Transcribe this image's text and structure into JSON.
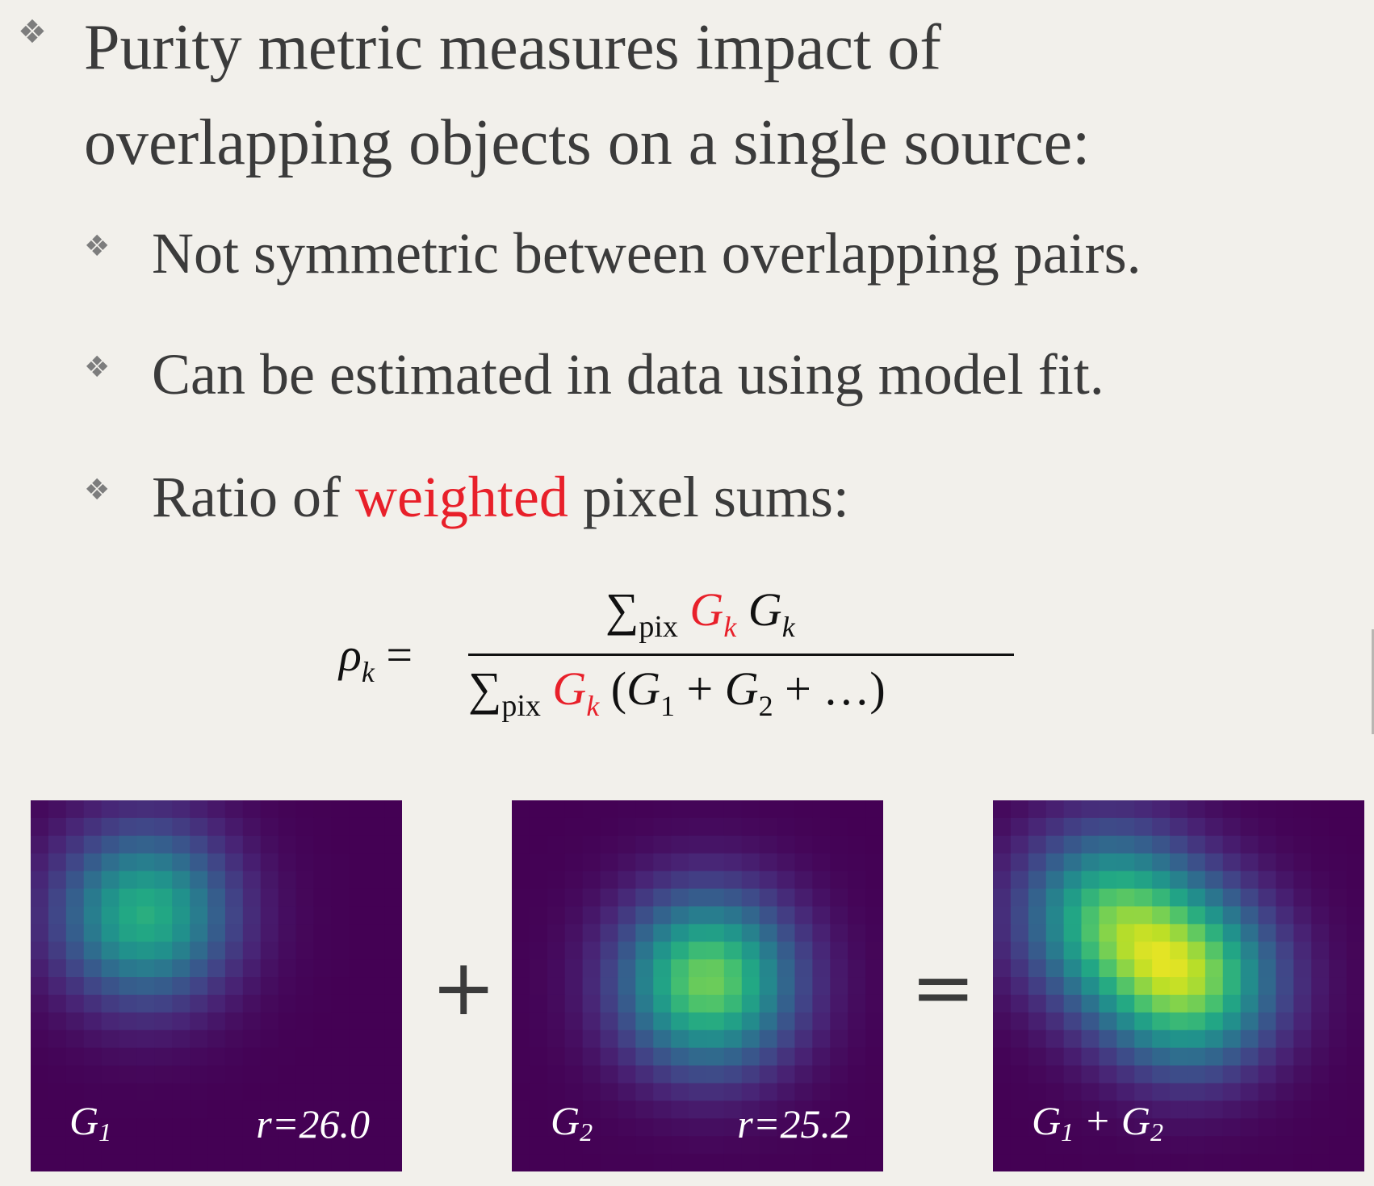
{
  "main_bullet": {
    "icon": "diamond-bullet-icon",
    "line1": "Purity metric measures impact of",
    "line2": "overlapping objects on a single source:"
  },
  "sub_bullets": [
    {
      "icon": "diamond-bullet-icon",
      "before": "Not symmetric between overlapping pairs.",
      "highlight": "",
      "after": ""
    },
    {
      "icon": "diamond-bullet-icon",
      "before": "Can be estimated in data using model fit.",
      "highlight": "",
      "after": ""
    },
    {
      "icon": "diamond-bullet-icon",
      "before": "Ratio of ",
      "highlight": "weighted",
      "after": " pixel sums:"
    }
  ],
  "formula": {
    "rho": "ρ",
    "k": "k",
    "equals": " = ",
    "sum": "∑",
    "pix": "pix",
    "G": "G",
    "numer_weight": "G",
    "denom_open": " (",
    "one": "1",
    "two": "2",
    "plus": " + ",
    "ellipsis": "…)",
    "highlight_color": "#e8202a"
  },
  "panels": [
    {
      "label_main": "G",
      "label_sub": "1",
      "label_rest": "",
      "label_sub2": "",
      "r_label": "r=26.0"
    },
    {
      "label_main": "G",
      "label_sub": "2",
      "label_rest": "",
      "label_sub2": "",
      "r_label": "r=25.2"
    },
    {
      "label_main": "G",
      "label_sub": "1",
      "label_rest": " + G",
      "label_sub2": "2",
      "r_label": ""
    }
  ],
  "operators": {
    "plus": "+",
    "equals": "="
  },
  "colormap": "viridis",
  "colors": {
    "text": "#3b3b3b",
    "highlight": "#e8202a",
    "panel_bg": "#440a55",
    "slide_bg": "#f2f0eb"
  }
}
